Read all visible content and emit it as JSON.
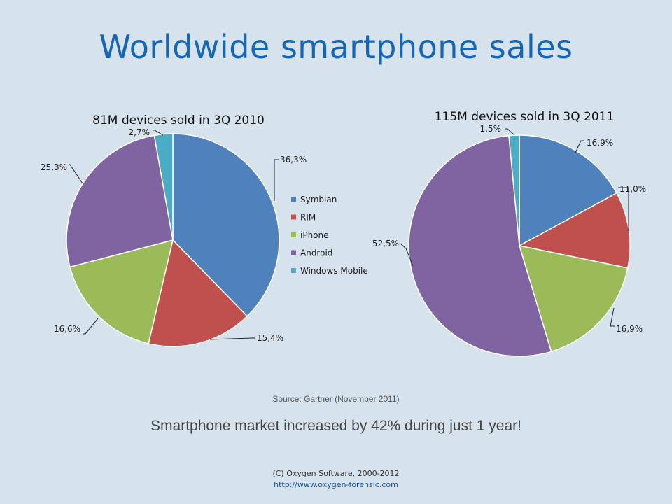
{
  "slide": {
    "title": "Worldwide smartphone sales",
    "source": "Source: Gartner (November 2011)",
    "tagline": "Smartphone market increased by 42% during just 1 year!",
    "copyright": "(C) Oxygen Software, 2000-2012",
    "url": "http://www.oxygen-forensic.com"
  },
  "colors": {
    "background": "#d6e3ec",
    "title": "#1566b7",
    "series": [
      "#4f81bd",
      "#c0504d",
      "#9bbb59",
      "#8064a2",
      "#4bacc6"
    ]
  },
  "legend": {
    "placement": "right of first pie",
    "entries": [
      "Symbian",
      "RIM",
      "iPhone",
      "Android",
      "Windows Mobile"
    ]
  },
  "chart_data": [
    {
      "type": "pie",
      "title": "81M devices sold in 3Q 2010",
      "categories": [
        "Symbian",
        "RIM",
        "iPhone",
        "Android",
        "Windows Mobile"
      ],
      "values": [
        36.3,
        15.4,
        16.6,
        25.3,
        2.7
      ],
      "labels": [
        "36,3%",
        "15,4%",
        "16,6%",
        "25,3%",
        "2,7%"
      ]
    },
    {
      "type": "pie",
      "title": "115M devices sold in 3Q 2011",
      "categories": [
        "Symbian",
        "RIM",
        "iPhone",
        "Android",
        "Windows Mobile"
      ],
      "values": [
        16.9,
        11.0,
        16.9,
        52.5,
        1.5
      ],
      "labels": [
        "16,9%",
        "11,0%",
        "16,9%",
        "52,5%",
        "1,5%"
      ]
    }
  ]
}
